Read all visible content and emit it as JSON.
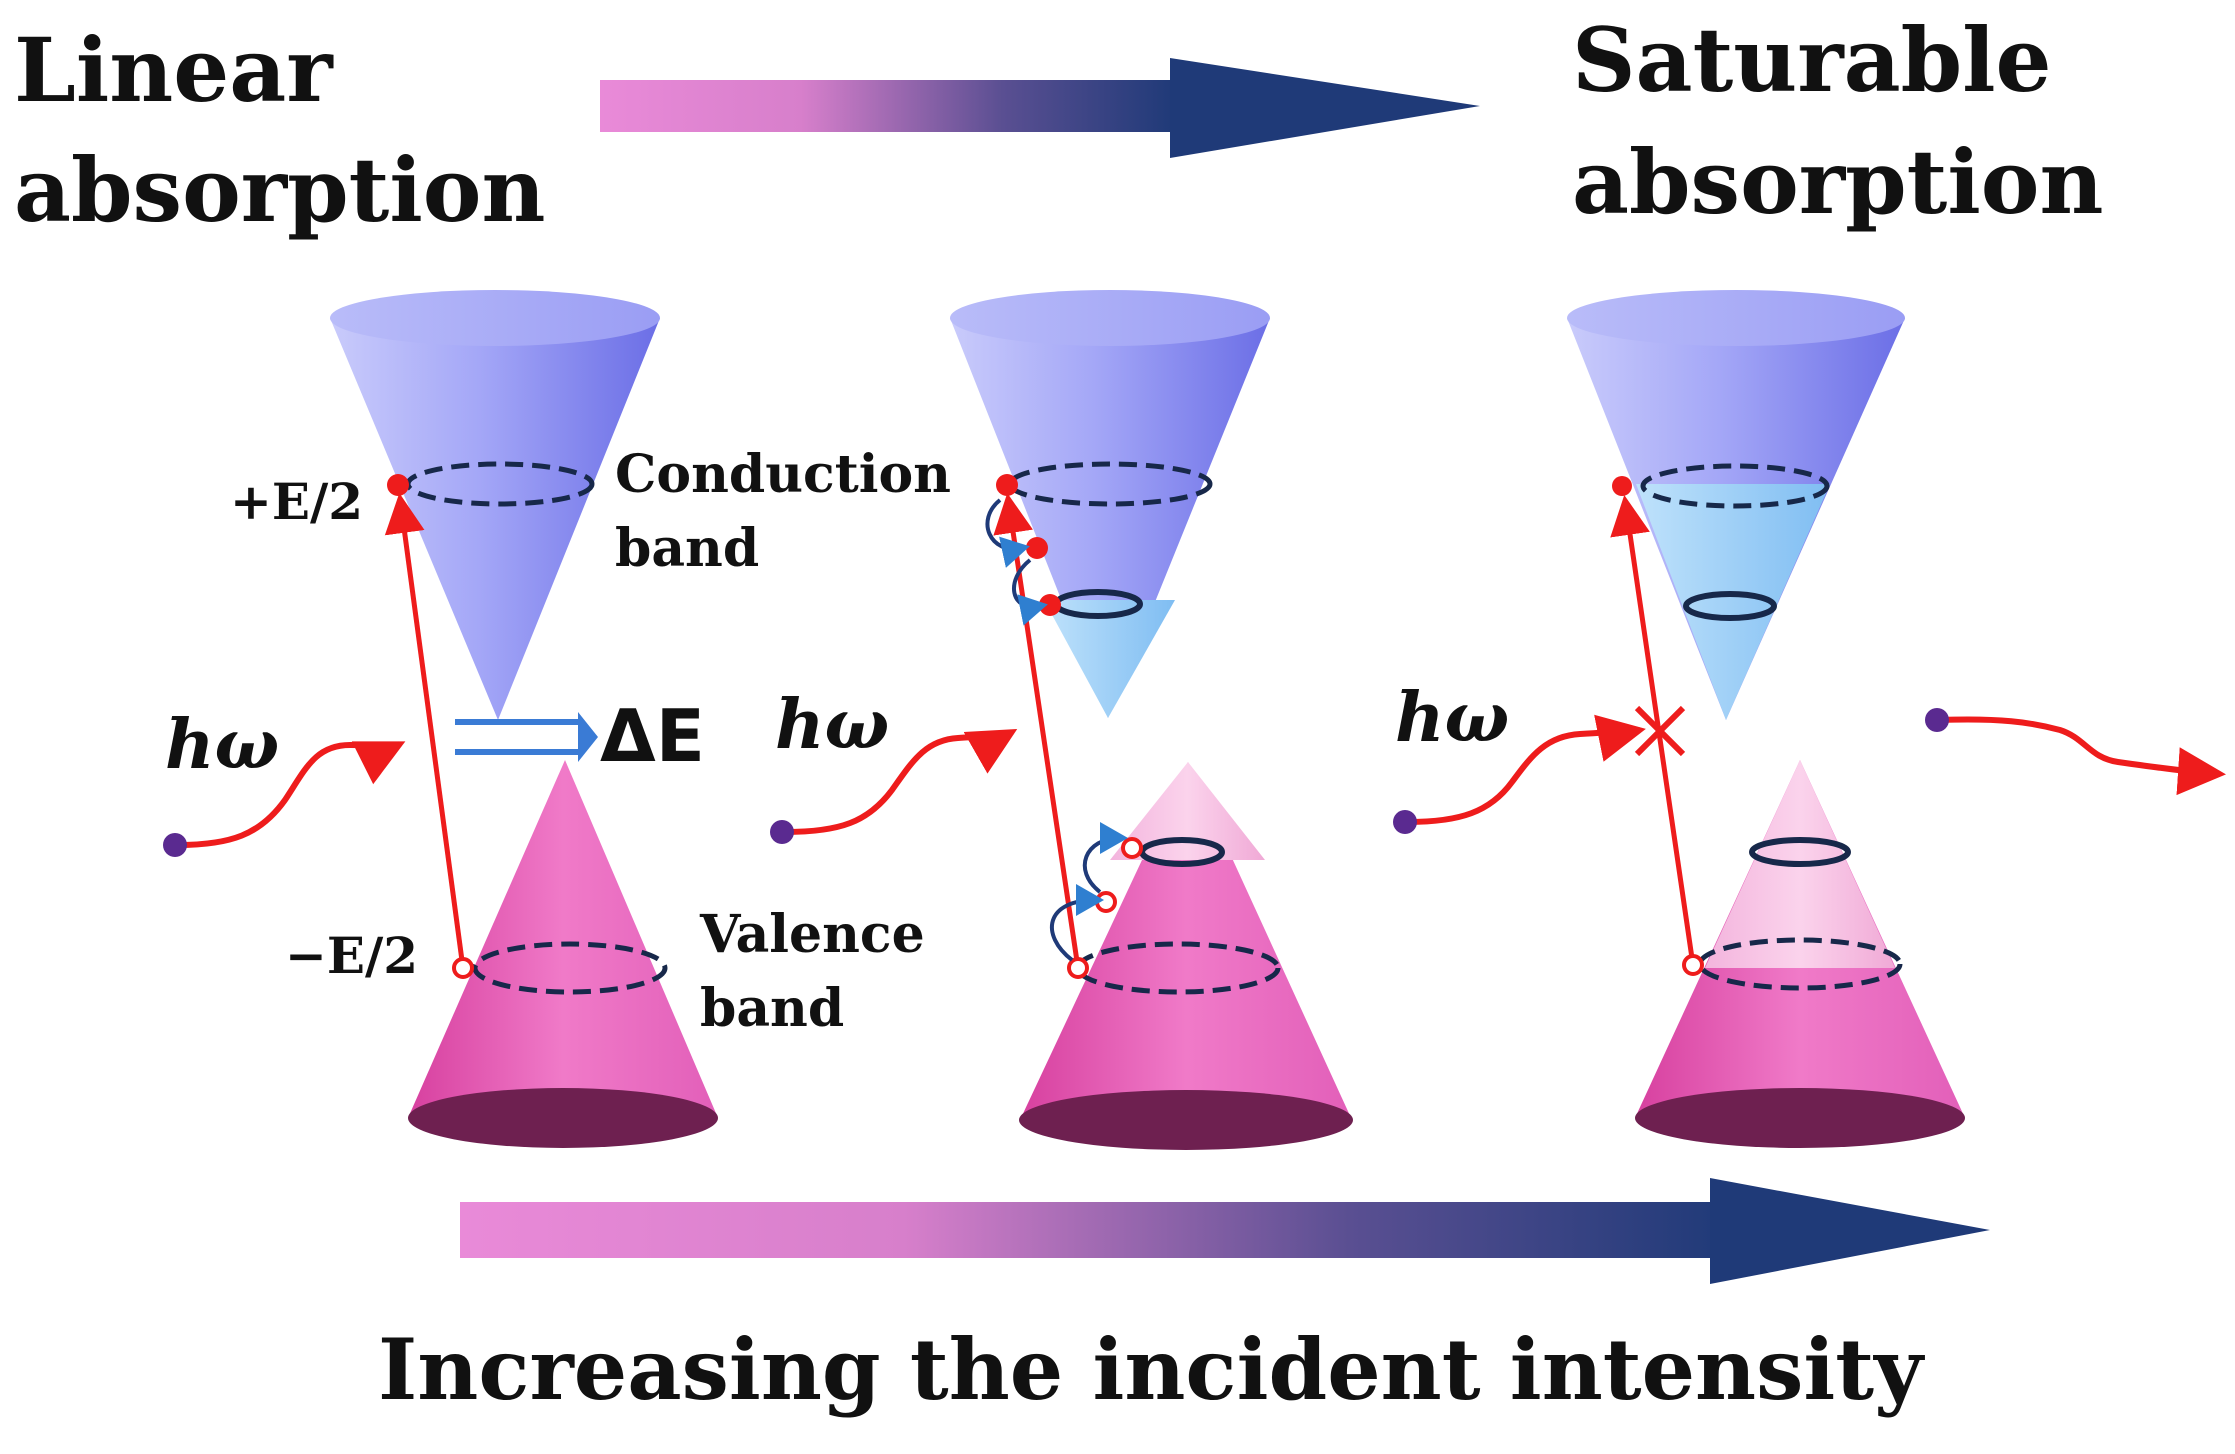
{
  "titles": {
    "left_line1": "Linear",
    "left_line2": "absorption",
    "right_line1": "Saturable",
    "right_line2": "absorption"
  },
  "labels": {
    "plus_e": "+E/2",
    "minus_e": "−E/2",
    "conduction_line1": "Conduction",
    "conduction_line2": "band",
    "valence_line1": "Valence",
    "valence_line2": "band",
    "delta_e": "ΔE",
    "photon": "hω"
  },
  "footer": {
    "caption": "Increasing the incident intensity"
  },
  "colors": {
    "conduction_cone": "#8f92f2",
    "valence_cone": "#e85fbc",
    "arrow_start": "#e98ad8",
    "arrow_end": "#1f3a78",
    "transition": "#ee1c1c",
    "ring": "#17284a",
    "photon_dot": "#5a2a90"
  }
}
